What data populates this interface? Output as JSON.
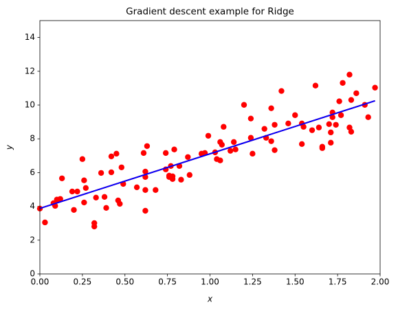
{
  "chart_data": {
    "type": "scatter",
    "title": "Gradient descent example for Ridge",
    "xlabel": "x",
    "ylabel": "y",
    "x": [
      0.0,
      0.03,
      0.08,
      0.09,
      0.1,
      0.12,
      0.13,
      0.19,
      0.2,
      0.22,
      0.25,
      0.26,
      0.26,
      0.27,
      0.32,
      0.32,
      0.33,
      0.36,
      0.38,
      0.39,
      0.42,
      0.42,
      0.45,
      0.46,
      0.47,
      0.48,
      0.49,
      0.57,
      0.61,
      0.62,
      0.62,
      0.62,
      0.62,
      0.63,
      0.68,
      0.74,
      0.74,
      0.76,
      0.76,
      0.77,
      0.78,
      0.78,
      0.79,
      0.82,
      0.83,
      0.87,
      0.88,
      0.95,
      0.97,
      0.99,
      1.03,
      1.04,
      1.06,
      1.06,
      1.07,
      1.08,
      1.12,
      1.14,
      1.15,
      1.2,
      1.24,
      1.24,
      1.25,
      1.32,
      1.33,
      1.36,
      1.36,
      1.38,
      1.38,
      1.42,
      1.46,
      1.5,
      1.54,
      1.54,
      1.55,
      1.6,
      1.62,
      1.64,
      1.66,
      1.66,
      1.7,
      1.71,
      1.71,
      1.72,
      1.72,
      1.74,
      1.76,
      1.77,
      1.78,
      1.82,
      1.82,
      1.83,
      1.83,
      1.86,
      1.91,
      1.93,
      1.97
    ],
    "values": [
      3.87,
      3.05,
      4.19,
      4.03,
      4.4,
      4.44,
      5.66,
      4.88,
      3.79,
      4.88,
      6.8,
      5.54,
      4.23,
      5.09,
      3.01,
      2.81,
      4.52,
      5.98,
      4.56,
      3.91,
      6.02,
      6.96,
      7.12,
      4.35,
      4.15,
      6.31,
      5.33,
      5.13,
      7.16,
      6.06,
      5.74,
      4.97,
      3.74,
      7.57,
      4.97,
      7.16,
      6.19,
      5.82,
      5.74,
      6.39,
      5.78,
      5.62,
      7.37,
      6.39,
      5.58,
      6.92,
      5.86,
      7.12,
      7.16,
      8.18,
      7.2,
      6.8,
      6.72,
      7.81,
      7.65,
      8.71,
      7.29,
      7.81,
      7.37,
      10.01,
      9.2,
      8.06,
      7.12,
      8.59,
      8.06,
      7.86,
      9.81,
      8.83,
      7.33,
      10.83,
      8.91,
      9.4,
      8.91,
      7.69,
      8.71,
      8.51,
      11.15,
      8.67,
      7.53,
      7.45,
      8.87,
      8.38,
      7.77,
      9.56,
      9.28,
      8.83,
      10.22,
      9.4,
      11.31,
      8.67,
      11.8,
      8.42,
      10.3,
      10.7,
      10.01,
      9.28,
      11.03
    ],
    "color": "#ff0000",
    "lines": [
      {
        "color": "#ff0000",
        "x": [
          0.0,
          1.97
        ],
        "values": [
          3.88,
          10.25
        ]
      },
      {
        "color": "#0000ff",
        "x": [
          0.0,
          1.97
        ],
        "values": [
          3.88,
          10.25
        ]
      }
    ],
    "xlim": [
      0,
      2
    ],
    "ylim": [
      0,
      15
    ],
    "xticks": [
      {
        "value": 0,
        "label": "0.00"
      },
      0.25,
      {
        "value": 0.5,
        "label": "0.50"
      },
      0.75,
      {
        "value": 1,
        "label": "1.00"
      },
      1.25,
      {
        "value": 1.5,
        "label": "1.50"
      },
      1.75,
      {
        "value": 2,
        "label": "2.00"
      }
    ],
    "yticks": [
      0,
      2,
      4,
      6,
      8,
      10,
      12,
      14
    ],
    "grid": false
  }
}
